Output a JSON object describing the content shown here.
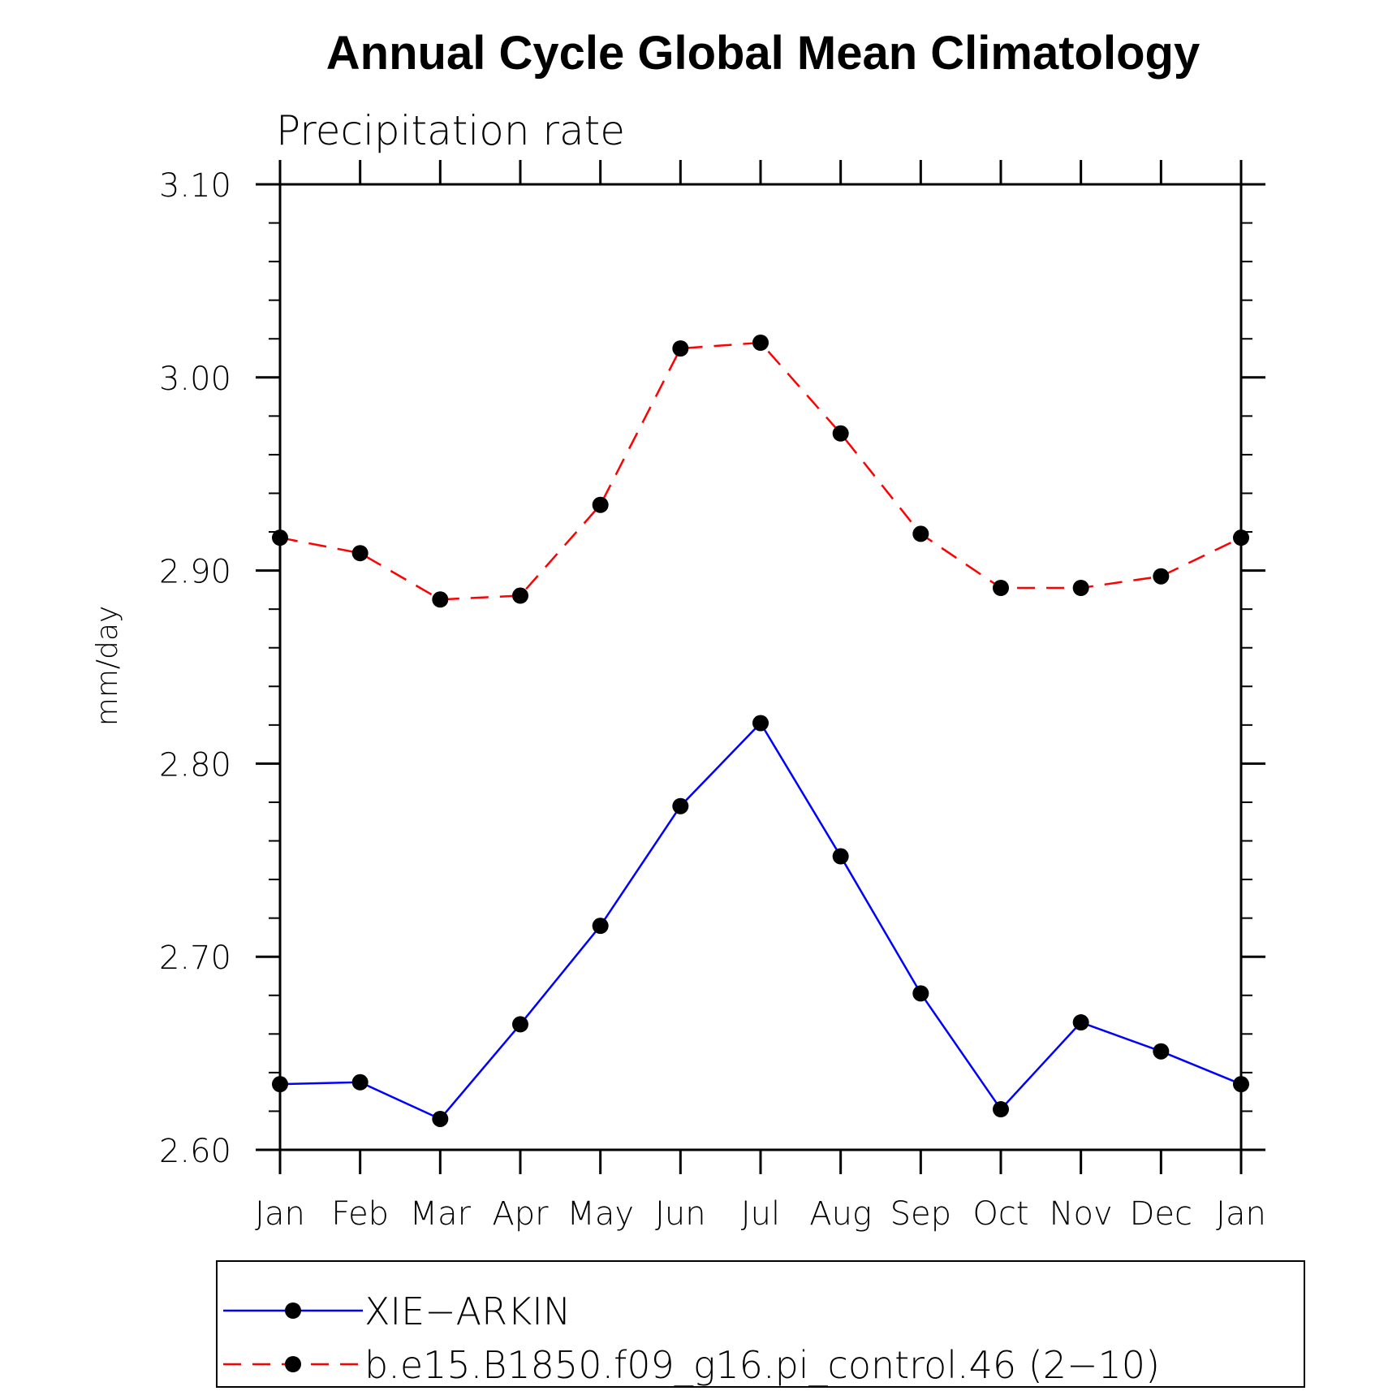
{
  "chart_data": {
    "type": "line",
    "title": "Annual Cycle Global Mean Climatology",
    "subtitle": "Precipitation rate",
    "ylabel": "mm/day",
    "xlabel": "",
    "categories": [
      "Jan",
      "Feb",
      "Mar",
      "Apr",
      "May",
      "Jun",
      "Jul",
      "Aug",
      "Sep",
      "Oct",
      "Nov",
      "Dec",
      "Jan"
    ],
    "ylim": [
      2.6,
      3.1
    ],
    "yticks": [
      "2.60",
      "2.70",
      "2.80",
      "2.90",
      "3.00",
      "3.10"
    ],
    "ytick_values": [
      2.6,
      2.7,
      2.8,
      2.9,
      3.0,
      3.1
    ],
    "grid": false,
    "legend_position": "bottom",
    "series": [
      {
        "name": "XIE−ARKIN",
        "color": "#0000ff",
        "line_style": "solid",
        "marker": "filled-circle",
        "values": [
          2.634,
          2.635,
          2.616,
          2.665,
          2.716,
          2.778,
          2.821,
          2.752,
          2.681,
          2.621,
          2.666,
          2.651,
          2.634
        ]
      },
      {
        "name": "b.e15.B1850.f09_g16.pi_control.46 (2−10)",
        "color": "#ff0000",
        "line_style": "dashed",
        "marker": "filled-circle",
        "values": [
          2.917,
          2.909,
          2.885,
          2.887,
          2.934,
          3.015,
          3.018,
          2.971,
          2.919,
          2.891,
          2.891,
          2.897,
          2.917
        ]
      }
    ]
  }
}
